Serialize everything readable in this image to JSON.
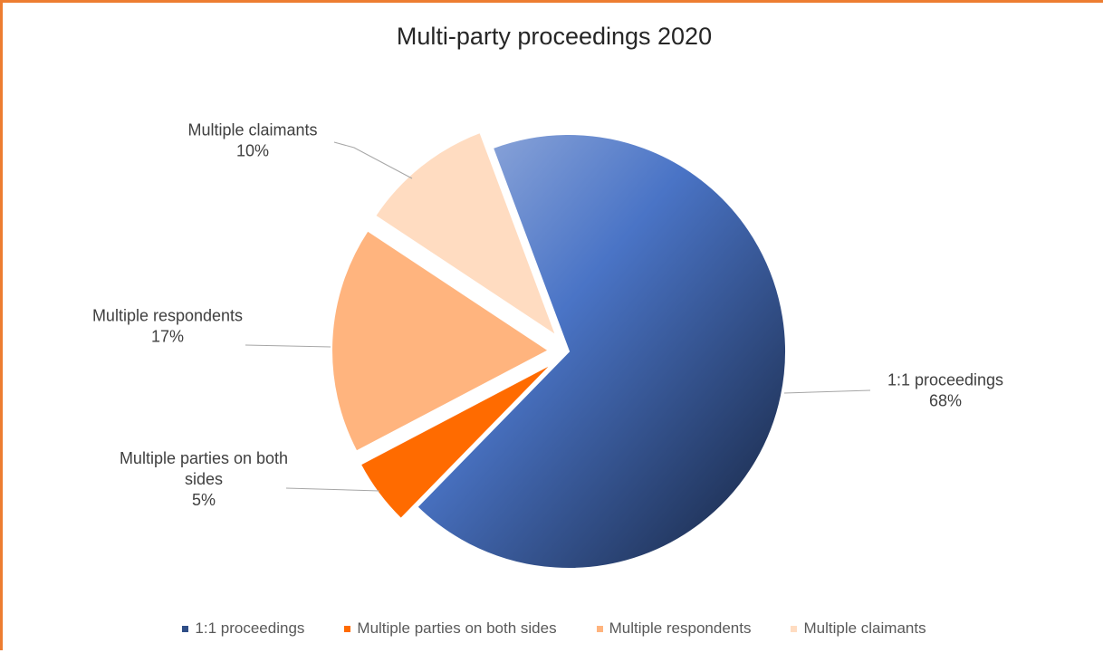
{
  "chart_data": {
    "type": "pie",
    "title": "Multi-party proceedings 2020",
    "slices": [
      {
        "label": "1:1 proceedings",
        "percent_label": "68%",
        "value": 68,
        "color": "#2F4E87",
        "exploded": false
      },
      {
        "label": "Multiple parties on both sides",
        "callout_lines": [
          "Multiple parties on both",
          "sides"
        ],
        "percent_label": "5%",
        "value": 5,
        "color": "#FF6B00",
        "exploded": true
      },
      {
        "label": "Multiple respondents",
        "percent_label": "17%",
        "value": 17,
        "color": "#FFB47E",
        "exploded": true
      },
      {
        "label": "Multiple claimants",
        "percent_label": "10%",
        "value": 10,
        "color": "#FFDCC1",
        "exploded": true
      }
    ],
    "legend_position": "bottom",
    "gradient": {
      "main_slice": [
        "#9DB2DE",
        "#4A74C6",
        "#15223C"
      ]
    }
  }
}
